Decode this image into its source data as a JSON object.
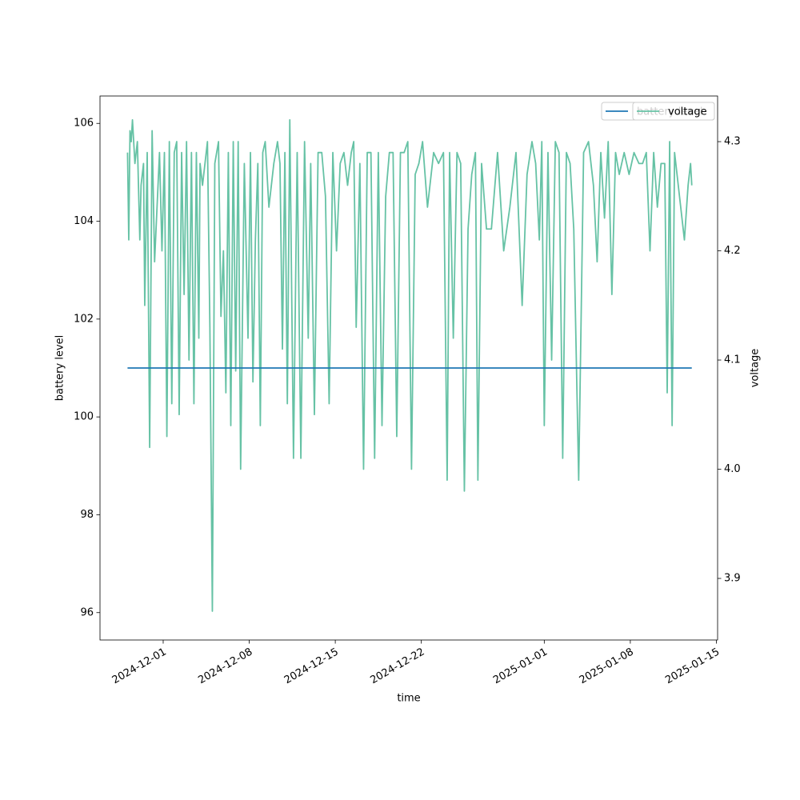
{
  "chart_data": {
    "type": "line",
    "xlabel": "time",
    "ylabel": "battery level",
    "y2label": "voltage",
    "xlim": [
      -5.14,
      45.1
    ],
    "xticks": [
      {
        "value": 0,
        "label": "2024-12-01"
      },
      {
        "value": 7,
        "label": "2024-12-08"
      },
      {
        "value": 14,
        "label": "2024-12-15"
      },
      {
        "value": 21,
        "label": "2024-12-22"
      },
      {
        "value": 31,
        "label": "2025-01-01"
      },
      {
        "value": 38,
        "label": "2025-01-08"
      },
      {
        "value": 45,
        "label": "2025-01-15"
      }
    ],
    "ylim": [
      95.44,
      106.56
    ],
    "yticks": [
      96,
      98,
      100,
      102,
      104,
      106
    ],
    "y2lim": [
      3.8436,
      4.3418
    ],
    "y2ticks": [
      3.9,
      {
        "value": 4,
        "label": "4.0"
      },
      4.1,
      4.2,
      4.3
    ],
    "legend": "upper right",
    "series": [
      {
        "name": "battery level",
        "color": "#1f77b4",
        "axis": "y",
        "x": [
          -2.9,
          43.0
        ],
        "values": [
          101,
          101
        ]
      },
      {
        "name": "voltage",
        "color": "#66c2a5",
        "axis": "y2",
        "x": [
          -2.9,
          -2.8,
          -2.7,
          -2.6,
          -2.5,
          -2.3,
          -2.1,
          -1.9,
          -1.8,
          -1.6,
          -1.5,
          -1.3,
          -1.1,
          -0.9,
          -0.7,
          -0.5,
          -0.3,
          -0.1,
          0.1,
          0.3,
          0.5,
          0.7,
          0.9,
          1.1,
          1.3,
          1.5,
          1.7,
          1.9,
          2.1,
          2.3,
          2.5,
          2.7,
          2.9,
          3.0,
          3.2,
          3.6,
          3.8,
          4.0,
          4.2,
          4.5,
          4.7,
          4.9,
          5.1,
          5.3,
          5.5,
          5.7,
          5.9,
          6.1,
          6.3,
          6.6,
          6.9,
          7.1,
          7.3,
          7.5,
          7.7,
          7.9,
          8.1,
          8.3,
          8.6,
          9.0,
          9.3,
          9.5,
          9.7,
          9.9,
          10.1,
          10.3,
          10.6,
          10.9,
          11.2,
          11.5,
          11.8,
          12.0,
          12.3,
          12.6,
          12.9,
          13.2,
          13.5,
          13.8,
          14.1,
          14.4,
          14.7,
          15.0,
          15.3,
          15.5,
          15.7,
          16.0,
          16.3,
          16.6,
          16.9,
          17.2,
          17.5,
          17.8,
          18.1,
          18.4,
          18.7,
          19.0,
          19.3,
          19.6,
          19.9,
          20.2,
          20.5,
          20.8,
          21.1,
          21.5,
          22.0,
          22.4,
          22.8,
          23.1,
          23.3,
          23.6,
          23.9,
          24.2,
          24.5,
          24.8,
          25.1,
          25.4,
          25.6,
          25.9,
          26.3,
          26.7,
          27.2,
          27.7,
          28.2,
          28.7,
          29.2,
          29.6,
          30.0,
          30.3,
          30.6,
          30.8,
          31.0,
          31.3,
          31.6,
          31.9,
          32.2,
          32.5,
          32.8,
          33.1,
          33.4,
          33.8,
          34.2,
          34.6,
          35.0,
          35.3,
          35.6,
          35.9,
          36.2,
          36.5,
          36.8,
          37.1,
          37.5,
          37.9,
          38.3,
          38.7,
          39.0,
          39.3,
          39.6,
          39.9,
          40.2,
          40.5,
          40.8,
          41.0,
          41.2,
          41.4,
          41.6,
          42.0,
          42.4,
          42.7,
          42.9,
          43.0
        ],
        "values": [
          4.29,
          4.21,
          4.31,
          4.3,
          4.32,
          4.28,
          4.3,
          4.21,
          4.26,
          4.28,
          4.15,
          4.29,
          4.02,
          4.31,
          4.19,
          4.24,
          4.29,
          4.2,
          4.29,
          4.03,
          4.3,
          4.06,
          4.29,
          4.3,
          4.05,
          4.29,
          4.16,
          4.3,
          4.1,
          4.29,
          4.06,
          4.29,
          4.12,
          4.28,
          4.26,
          4.3,
          4.13,
          3.87,
          4.28,
          4.3,
          4.14,
          4.2,
          4.07,
          4.29,
          4.04,
          4.3,
          4.09,
          4.3,
          4.0,
          4.28,
          4.12,
          4.29,
          4.08,
          4.21,
          4.28,
          4.04,
          4.29,
          4.3,
          4.24,
          4.28,
          4.3,
          4.28,
          4.11,
          4.29,
          4.06,
          4.32,
          4.01,
          4.29,
          4.01,
          4.3,
          4.12,
          4.28,
          4.05,
          4.29,
          4.29,
          4.25,
          4.06,
          4.29,
          4.2,
          4.28,
          4.29,
          4.26,
          4.29,
          4.3,
          4.13,
          4.28,
          4.0,
          4.29,
          4.29,
          4.01,
          4.29,
          4.04,
          4.25,
          4.29,
          4.29,
          4.03,
          4.29,
          4.29,
          4.3,
          4.0,
          4.27,
          4.28,
          4.3,
          4.24,
          4.29,
          4.28,
          4.29,
          3.99,
          4.29,
          4.12,
          4.29,
          4.28,
          3.98,
          4.22,
          4.27,
          4.29,
          3.99,
          4.28,
          4.22,
          4.22,
          4.29,
          4.2,
          4.24,
          4.29,
          4.15,
          4.27,
          4.3,
          4.28,
          4.21,
          4.3,
          4.04,
          4.29,
          4.1,
          4.3,
          4.29,
          4.01,
          4.29,
          4.28,
          4.22,
          3.99,
          4.29,
          4.3,
          4.26,
          4.19,
          4.29,
          4.23,
          4.3,
          4.16,
          4.29,
          4.27,
          4.29,
          4.27,
          4.29,
          4.28,
          4.28,
          4.29,
          4.2,
          4.29,
          4.24,
          4.28,
          4.28,
          4.07,
          4.3,
          4.04,
          4.29,
          4.25,
          4.21,
          4.26,
          4.28,
          4.26
        ]
      }
    ]
  }
}
